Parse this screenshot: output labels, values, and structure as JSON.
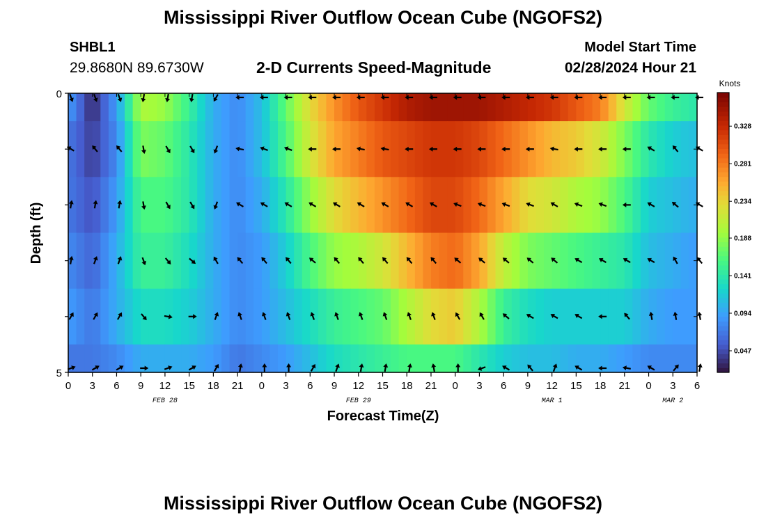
{
  "page": {
    "title_top": "Mississippi River Outflow Ocean Cube (NGOFS2)",
    "title_bottom": "Mississippi River Outflow Ocean Cube (NGOFS2)",
    "station": "SHBL1",
    "coords": "29.8680N  89.6730W",
    "subtitle": "2-D Currents Speed-Magnitude",
    "model_start_label": "Model Start Time",
    "model_start_value": "02/28/2024 Hour 21"
  },
  "chart_data": {
    "type": "heatmap",
    "title": "2-D Currents Speed-Magnitude",
    "xlabel": "Forecast Time(Z)",
    "ylabel": "Depth (ft)",
    "x_tick_labels": [
      "0",
      "3",
      "6",
      "9",
      "12",
      "15",
      "18",
      "21",
      "0",
      "3",
      "6",
      "9",
      "12",
      "15",
      "18",
      "21",
      "0",
      "3",
      "6",
      "9",
      "12",
      "15",
      "18",
      "21",
      "0",
      "3",
      "6"
    ],
    "day_labels": [
      {
        "label": "FEB 28",
        "hour": 12
      },
      {
        "label": "FEB 29",
        "hour": 36
      },
      {
        "label": "MAR 1",
        "hour": 60
      },
      {
        "label": "MAR 2",
        "hour": 75
      }
    ],
    "x_range_hours": [
      0,
      78
    ],
    "y_tick_labels": [
      "0",
      "5"
    ],
    "y_range": [
      0,
      5
    ],
    "colorbar": {
      "label": "Knots",
      "ticks": [
        0.047,
        0.094,
        0.141,
        0.188,
        0.234,
        0.281,
        0.328
      ],
      "range": [
        0.02,
        0.37
      ]
    },
    "depth_layers": [
      0.5,
      1.5,
      2.5,
      3.5,
      4.5
    ],
    "anchor_hours": [
      0,
      3,
      6,
      9,
      12,
      15,
      18,
      21,
      24,
      27,
      30,
      33,
      36,
      39,
      42,
      45,
      48,
      51,
      54,
      57,
      60,
      63,
      66,
      69,
      72,
      75,
      78
    ],
    "speed_knots": [
      [
        0.09,
        0.03,
        0.09,
        0.2,
        0.19,
        0.15,
        0.1,
        0.08,
        0.11,
        0.17,
        0.23,
        0.27,
        0.3,
        0.32,
        0.34,
        0.35,
        0.35,
        0.35,
        0.34,
        0.33,
        0.32,
        0.3,
        0.28,
        0.22,
        0.17,
        0.15,
        0.14
      ],
      [
        0.07,
        0.04,
        0.08,
        0.18,
        0.17,
        0.14,
        0.1,
        0.08,
        0.11,
        0.16,
        0.22,
        0.26,
        0.28,
        0.3,
        0.31,
        0.32,
        0.32,
        0.31,
        0.29,
        0.27,
        0.25,
        0.24,
        0.22,
        0.18,
        0.14,
        0.12,
        0.11
      ],
      [
        0.07,
        0.05,
        0.09,
        0.16,
        0.16,
        0.14,
        0.1,
        0.08,
        0.1,
        0.14,
        0.19,
        0.23,
        0.25,
        0.27,
        0.29,
        0.31,
        0.31,
        0.29,
        0.26,
        0.23,
        0.22,
        0.2,
        0.19,
        0.16,
        0.12,
        0.11,
        0.1
      ],
      [
        0.08,
        0.06,
        0.1,
        0.15,
        0.15,
        0.13,
        0.1,
        0.08,
        0.09,
        0.12,
        0.16,
        0.19,
        0.2,
        0.22,
        0.25,
        0.28,
        0.29,
        0.26,
        0.21,
        0.18,
        0.17,
        0.16,
        0.15,
        0.14,
        0.11,
        0.1,
        0.09
      ],
      [
        0.09,
        0.07,
        0.1,
        0.13,
        0.13,
        0.12,
        0.1,
        0.08,
        0.09,
        0.11,
        0.13,
        0.15,
        0.16,
        0.17,
        0.2,
        0.23,
        0.24,
        0.2,
        0.15,
        0.13,
        0.12,
        0.12,
        0.12,
        0.12,
        0.1,
        0.09,
        0.09
      ],
      [
        0.07,
        0.07,
        0.08,
        0.1,
        0.1,
        0.1,
        0.09,
        0.07,
        0.08,
        0.09,
        0.11,
        0.13,
        0.14,
        0.15,
        0.16,
        0.16,
        0.16,
        0.14,
        0.12,
        0.11,
        0.11,
        0.1,
        0.1,
        0.09,
        0.08,
        0.08,
        0.08
      ]
    ],
    "arrow_hours": [
      0,
      3,
      6,
      9,
      12,
      15,
      18,
      21,
      24,
      27,
      30,
      33,
      36,
      39,
      42,
      45,
      48,
      51,
      54,
      57,
      60,
      63,
      66,
      69,
      72,
      75,
      78
    ],
    "arrow_depths": [
      0,
      1,
      2,
      3,
      4,
      5
    ],
    "arrow_direction_deg": [
      [
        160,
        160,
        160,
        190,
        190,
        190,
        210,
        270,
        270,
        270,
        270,
        270,
        270,
        270,
        270,
        270,
        270,
        270,
        270,
        270,
        270,
        270,
        270,
        270,
        270,
        270,
        270
      ],
      [
        300,
        320,
        320,
        170,
        150,
        150,
        200,
        280,
        290,
        290,
        270,
        270,
        280,
        280,
        270,
        270,
        270,
        270,
        270,
        270,
        280,
        270,
        270,
        270,
        300,
        320,
        300
      ],
      [
        10,
        10,
        10,
        170,
        150,
        150,
        200,
        300,
        300,
        300,
        300,
        300,
        300,
        300,
        300,
        300,
        290,
        290,
        290,
        290,
        300,
        290,
        290,
        270,
        300,
        310,
        300
      ],
      [
        10,
        20,
        20,
        160,
        140,
        130,
        330,
        320,
        320,
        320,
        310,
        320,
        320,
        320,
        320,
        320,
        310,
        310,
        310,
        310,
        310,
        300,
        300,
        300,
        300,
        330,
        320
      ],
      [
        30,
        30,
        30,
        140,
        100,
        90,
        20,
        340,
        340,
        340,
        340,
        340,
        340,
        340,
        340,
        340,
        330,
        330,
        310,
        300,
        300,
        300,
        270,
        320,
        350,
        350,
        350
      ],
      [
        70,
        60,
        60,
        90,
        70,
        60,
        30,
        10,
        0,
        0,
        30,
        20,
        10,
        10,
        10,
        350,
        0,
        250,
        300,
        320,
        20,
        300,
        270,
        280,
        300,
        40,
        10
      ]
    ]
  }
}
